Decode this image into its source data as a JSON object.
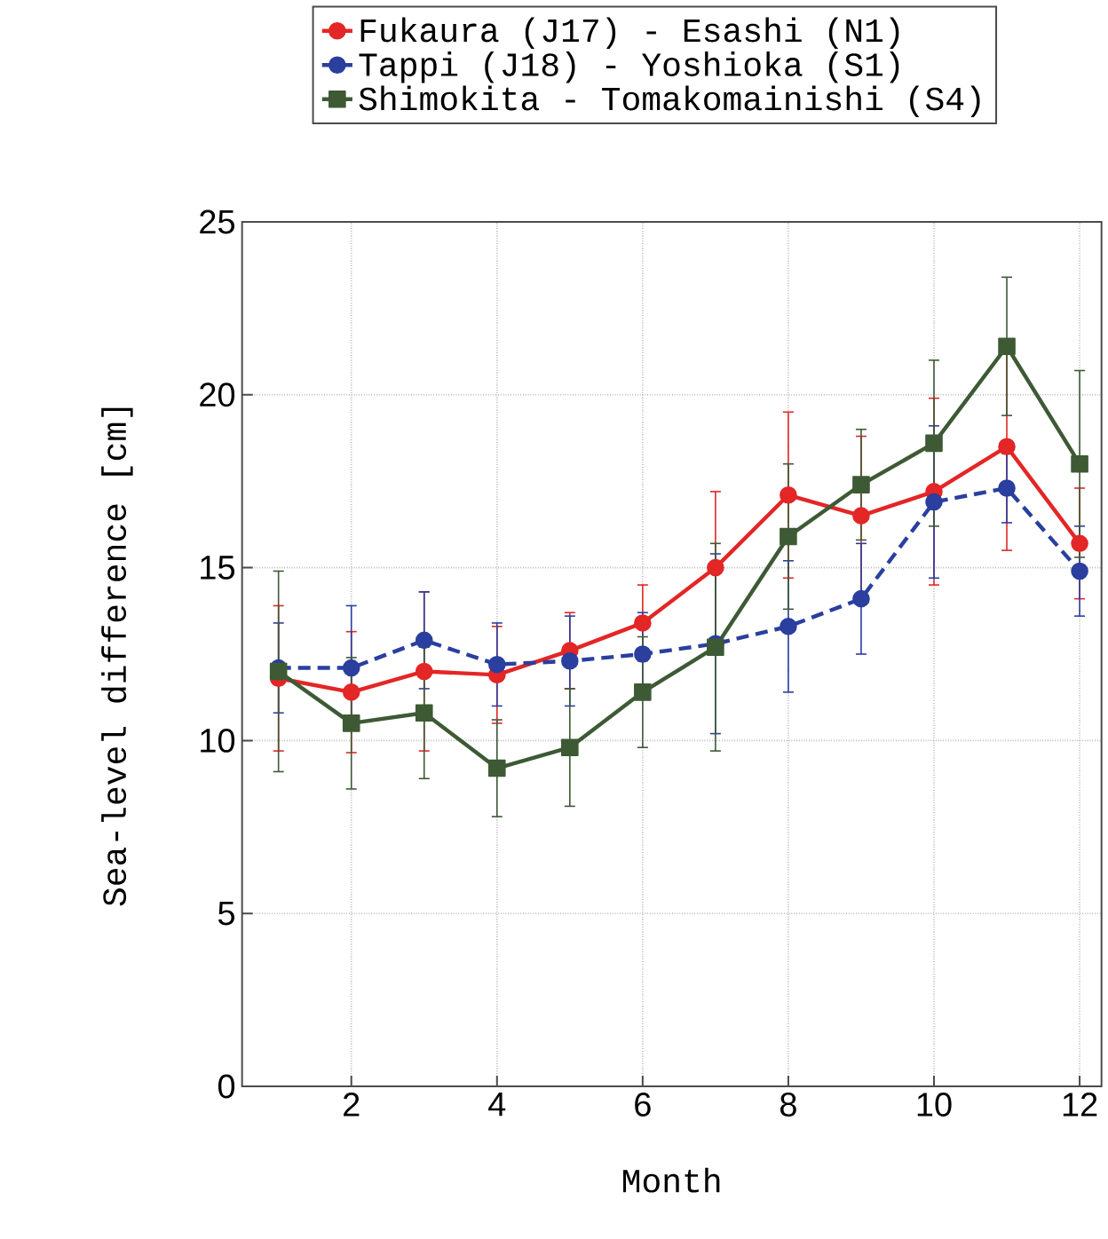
{
  "chart_data": {
    "type": "line",
    "xlabel": "Month",
    "ylabel": "Sea-level difference [cm]",
    "x": [
      1,
      2,
      3,
      4,
      5,
      6,
      7,
      8,
      9,
      10,
      11,
      12
    ],
    "xlim": [
      0.5,
      12.3
    ],
    "xticks": [
      2,
      4,
      6,
      8,
      10,
      12
    ],
    "ylim": [
      0,
      25
    ],
    "yticks": [
      0,
      5,
      10,
      15,
      20,
      25
    ],
    "grid": true,
    "legend": "top",
    "series": [
      {
        "name": "Fukaura (J17) - Esashi (N1)",
        "color": "#e32626",
        "marker": "circle",
        "line_style": "solid",
        "values": [
          11.8,
          11.4,
          12.0,
          11.9,
          12.6,
          13.4,
          15.0,
          17.1,
          16.5,
          17.2,
          18.5,
          15.7
        ],
        "errors": [
          2.1,
          1.75,
          2.3,
          1.4,
          1.1,
          1.1,
          2.2,
          2.4,
          2.3,
          2.7,
          3.0,
          1.6
        ]
      },
      {
        "name": "Tappi (J18) - Yoshioka (S1)",
        "color": "#2a3f9e",
        "marker": "circle",
        "line_style": "dashed",
        "values": [
          12.1,
          12.1,
          12.9,
          12.2,
          12.3,
          12.5,
          12.8,
          13.3,
          14.1,
          16.9,
          17.3,
          14.9
        ],
        "errors": [
          1.3,
          1.8,
          1.4,
          1.2,
          1.3,
          1.2,
          2.6,
          1.9,
          1.6,
          2.2,
          1.0,
          1.3
        ]
      },
      {
        "name": "Shimokita - Tomakomainishi (S4)",
        "color": "#3d5a35",
        "marker": "square",
        "line_style": "solid",
        "values": [
          12.0,
          10.5,
          10.8,
          9.2,
          9.8,
          11.4,
          12.7,
          15.9,
          17.4,
          18.6,
          21.4,
          18.0
        ],
        "errors": [
          2.9,
          1.9,
          1.9,
          1.4,
          1.7,
          1.6,
          3.0,
          2.1,
          1.6,
          2.4,
          2.0,
          2.7
        ]
      }
    ]
  }
}
